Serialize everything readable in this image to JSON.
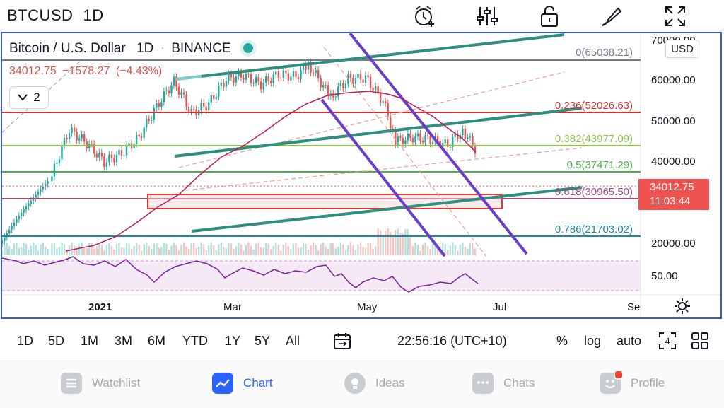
{
  "header": {
    "symbol": "BTCUSD",
    "timeframe": "1D",
    "icons": [
      "alarm-add-icon",
      "indicators-icon",
      "lock-icon",
      "drawing-brush-icon",
      "fullscreen-icon"
    ]
  },
  "legend": {
    "title": "Bitcoin / U.S. Dollar",
    "interval": "1D",
    "exchange": "BINANCE",
    "price": "34012.75",
    "change": "−1578.27",
    "change_pct": "(−4.43%)",
    "indicators_count": "2"
  },
  "price_axis": {
    "currency": "USD",
    "labels": [
      "70000.00",
      "60000.00",
      "50000.00",
      "40000.00",
      "20000.00",
      "50.00"
    ],
    "last_price": "34012.75",
    "countdown": "11:03:44"
  },
  "fib_levels": [
    {
      "label": "0(65038.21)",
      "color": "#787b86"
    },
    {
      "label": "0.236(52026.63)",
      "color": "#d32f2f"
    },
    {
      "label": "0.382(43977.09)",
      "color": "#8bc34a"
    },
    {
      "label": "0.5(37471.29)",
      "color": "#4caf50"
    },
    {
      "label": "0.618(30965.50)",
      "color": "#9c4d7c"
    },
    {
      "label": "0.786(21703.02)",
      "color": "#1e88a8"
    }
  ],
  "time_axis": [
    "2021",
    "Mar",
    "May",
    "Jul",
    "Se"
  ],
  "range_bar": {
    "ranges": [
      "1D",
      "5D",
      "1M",
      "3M",
      "6M",
      "YTD",
      "1Y",
      "5Y",
      "All"
    ],
    "clock": "22:56:16 (UTC+10)",
    "options": [
      "%",
      "log",
      "auto"
    ]
  },
  "nav": {
    "items": [
      {
        "label": "Watchlist",
        "active": false
      },
      {
        "label": "Chart",
        "active": true
      },
      {
        "label": "Ideas",
        "active": false
      },
      {
        "label": "Chats",
        "active": false
      },
      {
        "label": "Profile",
        "active": false
      }
    ]
  },
  "chart_data": {
    "type": "candlestick",
    "approximate_close": [
      [
        "2021-01-01",
        29000
      ],
      [
        "2021-01-08",
        40000
      ],
      [
        "2021-01-15",
        36500
      ],
      [
        "2021-01-22",
        32000
      ],
      [
        "2021-01-29",
        34000
      ],
      [
        "2021-02-05",
        38000
      ],
      [
        "2021-02-12",
        47000
      ],
      [
        "2021-02-19",
        56000
      ],
      [
        "2021-02-26",
        45000
      ],
      [
        "2021-03-05",
        48000
      ],
      [
        "2021-03-12",
        57000
      ],
      [
        "2021-03-19",
        58500
      ],
      [
        "2021-03-26",
        55000
      ],
      [
        "2021-04-02",
        59000
      ],
      [
        "2021-04-09",
        58000
      ],
      [
        "2021-04-14",
        63000
      ],
      [
        "2021-04-23",
        50000
      ],
      [
        "2021-04-30",
        57000
      ],
      [
        "2021-05-07",
        57500
      ],
      [
        "2021-05-14",
        49000
      ],
      [
        "2021-05-19",
        37000
      ],
      [
        "2021-05-26",
        38000
      ],
      [
        "2021-06-02",
        37500
      ],
      [
        "2021-06-09",
        36000
      ],
      [
        "2021-06-15",
        40000
      ],
      [
        "2021-06-21",
        34012.75
      ]
    ],
    "ylim": [
      15000,
      72000
    ],
    "scale": "log",
    "grid": false
  },
  "colors": {
    "accent": "#2962ff",
    "up": "#26a69a",
    "down": "#ef5350",
    "frame": "#3a5bd9",
    "channel": "#2f8f7f",
    "trend": "#6a3fc8",
    "rsi": "#7b1fa2"
  }
}
